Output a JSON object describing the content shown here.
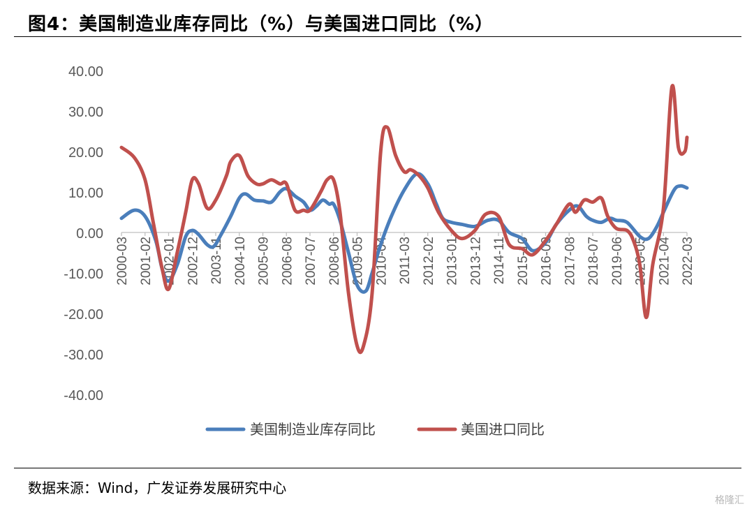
{
  "figure": {
    "title": "图4：美国制造业库存同比（%）与美国进口同比（%）",
    "source": "数据来源：Wind，广发证券发展研究中心",
    "watermark": "格隆汇"
  },
  "chart_data": {
    "type": "line",
    "title": "",
    "xlabel": "",
    "ylabel": "",
    "ylim": [
      -40,
      40
    ],
    "y_ticks": [
      40,
      30,
      20,
      10,
      0,
      -10,
      -20,
      -30,
      -40
    ],
    "y_tick_labels": [
      "40.00",
      "30.00",
      "20.00",
      "10.00",
      "0.00",
      "-10.00",
      "-20.00",
      "-30.00",
      "-40.00"
    ],
    "x_range": [
      "2000-03",
      "2022-03"
    ],
    "x_tick_labels": [
      "2000-03",
      "2001-02",
      "2002-01",
      "2002-12",
      "2003-11",
      "2004-10",
      "2005-09",
      "2006-08",
      "2007-07",
      "2008-06",
      "2009-05",
      "2010-04",
      "2011-03",
      "2012-02",
      "2013-01",
      "2013-12",
      "2014-11",
      "2015-10",
      "2016-09",
      "2017-08",
      "2018-07",
      "2019-06",
      "2020-05",
      "2021-04",
      "2022-03"
    ],
    "grid": false,
    "legend_position": "bottom",
    "series": [
      {
        "name": "美国制造业库存同比",
        "color": "#4a7ebb",
        "points": [
          [
            "2000-03",
            3.5
          ],
          [
            "2000-09",
            5.5
          ],
          [
            "2001-02",
            4.0
          ],
          [
            "2001-07",
            -2.0
          ],
          [
            "2001-10",
            -9.0
          ],
          [
            "2002-01",
            -12.0
          ],
          [
            "2002-05",
            -8.0
          ],
          [
            "2002-09",
            -1.0
          ],
          [
            "2002-12",
            0.5
          ],
          [
            "2003-03",
            -0.5
          ],
          [
            "2003-07",
            -3.0
          ],
          [
            "2003-10",
            -3.5
          ],
          [
            "2004-01",
            -1.0
          ],
          [
            "2004-06",
            4.0
          ],
          [
            "2004-10",
            8.5
          ],
          [
            "2005-01",
            9.5
          ],
          [
            "2005-05",
            8.0
          ],
          [
            "2005-09",
            7.8
          ],
          [
            "2006-01",
            7.5
          ],
          [
            "2006-05",
            10.0
          ],
          [
            "2006-08",
            10.8
          ],
          [
            "2006-12",
            9.0
          ],
          [
            "2007-04",
            7.5
          ],
          [
            "2007-07",
            5.5
          ],
          [
            "2007-10",
            6.5
          ],
          [
            "2008-01",
            8.0
          ],
          [
            "2008-04",
            7.0
          ],
          [
            "2008-06",
            7.0
          ],
          [
            "2008-09",
            3.0
          ],
          [
            "2009-01",
            -5.0
          ],
          [
            "2009-05",
            -13.0
          ],
          [
            "2009-09",
            -14.5
          ],
          [
            "2009-12",
            -10.0
          ],
          [
            "2010-04",
            -3.0
          ],
          [
            "2010-09",
            4.0
          ],
          [
            "2011-03",
            10.5
          ],
          [
            "2011-09",
            14.5
          ],
          [
            "2012-02",
            12.0
          ],
          [
            "2012-06",
            7.0
          ],
          [
            "2012-09",
            3.5
          ],
          [
            "2013-01",
            2.5
          ],
          [
            "2013-06",
            2.0
          ],
          [
            "2013-12",
            1.5
          ],
          [
            "2014-06",
            3.0
          ],
          [
            "2014-11",
            3.0
          ],
          [
            "2015-04",
            0.0
          ],
          [
            "2015-10",
            -1.5
          ],
          [
            "2016-03",
            -4.5
          ],
          [
            "2016-09",
            -2.5
          ],
          [
            "2017-02",
            2.0
          ],
          [
            "2017-08",
            5.5
          ],
          [
            "2017-12",
            6.5
          ],
          [
            "2018-04",
            4.0
          ],
          [
            "2018-07",
            3.0
          ],
          [
            "2018-11",
            2.5
          ],
          [
            "2019-03",
            3.5
          ],
          [
            "2019-06",
            3.0
          ],
          [
            "2019-11",
            2.5
          ],
          [
            "2020-05",
            -1.0
          ],
          [
            "2020-09",
            -1.5
          ],
          [
            "2021-01",
            1.5
          ],
          [
            "2021-04",
            5.0
          ],
          [
            "2021-09",
            10.5
          ],
          [
            "2021-12",
            11.5
          ],
          [
            "2022-03",
            11.0
          ]
        ]
      },
      {
        "name": "美国进口同比",
        "color": "#c0504d",
        "points": [
          [
            "2000-03",
            21.0
          ],
          [
            "2000-09",
            18.5
          ],
          [
            "2001-02",
            13.0
          ],
          [
            "2001-06",
            2.0
          ],
          [
            "2001-10",
            -9.0
          ],
          [
            "2002-01",
            -14.0
          ],
          [
            "2002-05",
            -5.0
          ],
          [
            "2002-09",
            5.0
          ],
          [
            "2002-12",
            13.0
          ],
          [
            "2003-03",
            12.0
          ],
          [
            "2003-07",
            6.0
          ],
          [
            "2003-11",
            8.0
          ],
          [
            "2004-04",
            14.0
          ],
          [
            "2004-06",
            17.5
          ],
          [
            "2004-10",
            19.0
          ],
          [
            "2005-02",
            14.0
          ],
          [
            "2005-06",
            12.0
          ],
          [
            "2005-09",
            12.0
          ],
          [
            "2006-01",
            13.0
          ],
          [
            "2006-05",
            12.0
          ],
          [
            "2006-08",
            12.0
          ],
          [
            "2006-12",
            5.5
          ],
          [
            "2007-04",
            5.5
          ],
          [
            "2007-07",
            5.5
          ],
          [
            "2007-12",
            10.0
          ],
          [
            "2008-03",
            13.0
          ],
          [
            "2008-06",
            13.0
          ],
          [
            "2008-09",
            5.0
          ],
          [
            "2009-01",
            -15.0
          ],
          [
            "2009-05",
            -28.0
          ],
          [
            "2009-08",
            -28.0
          ],
          [
            "2009-12",
            -15.0
          ],
          [
            "2010-04",
            20.0
          ],
          [
            "2010-07",
            26.0
          ],
          [
            "2010-11",
            19.0
          ],
          [
            "2011-03",
            15.0
          ],
          [
            "2011-06",
            15.5
          ],
          [
            "2011-10",
            14.0
          ],
          [
            "2012-02",
            11.0
          ],
          [
            "2012-07",
            5.0
          ],
          [
            "2013-01",
            0.5
          ],
          [
            "2013-06",
            -1.5
          ],
          [
            "2013-12",
            0.5
          ],
          [
            "2014-05",
            4.5
          ],
          [
            "2014-11",
            4.0
          ],
          [
            "2015-04",
            -3.0
          ],
          [
            "2015-10",
            -4.0
          ],
          [
            "2016-03",
            -5.5
          ],
          [
            "2016-09",
            -2.0
          ],
          [
            "2017-02",
            2.0
          ],
          [
            "2017-08",
            7.0
          ],
          [
            "2017-11",
            5.0
          ],
          [
            "2018-03",
            8.0
          ],
          [
            "2018-07",
            7.5
          ],
          [
            "2018-11",
            8.5
          ],
          [
            "2019-02",
            4.0
          ],
          [
            "2019-06",
            1.0
          ],
          [
            "2019-11",
            0.5
          ],
          [
            "2020-02",
            -2.0
          ],
          [
            "2020-05",
            -8.0
          ],
          [
            "2020-08",
            -21.0
          ],
          [
            "2020-11",
            -8.0
          ],
          [
            "2021-04",
            6.0
          ],
          [
            "2021-08",
            36.0
          ],
          [
            "2021-11",
            21.0
          ],
          [
            "2022-02",
            20.0
          ],
          [
            "2022-03",
            23.5
          ]
        ]
      }
    ]
  }
}
